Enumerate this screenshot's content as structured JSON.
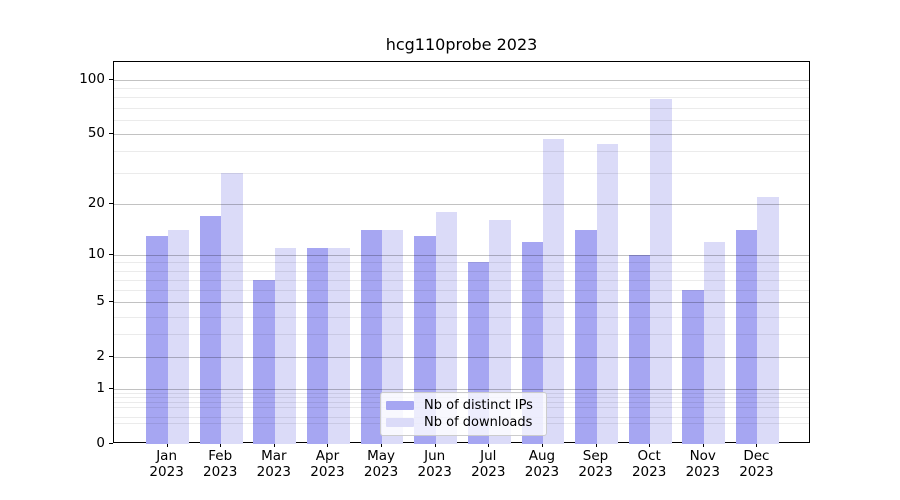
{
  "title": "hcg110probe 2023",
  "colors": {
    "distinct_ips": "#a6a6f2",
    "downloads": "#dbdbf8",
    "major_grid": "#c2c2c2",
    "minor_grid": "#ececec",
    "spine": "#000000"
  },
  "legend": {
    "items": [
      {
        "label": "Nb of distinct IPs",
        "series_key": "distinct_ips"
      },
      {
        "label": "Nb of downloads",
        "series_key": "downloads"
      }
    ],
    "position": "lower center"
  },
  "chart_data": {
    "type": "bar",
    "title": "hcg110probe 2023",
    "categories": [
      "Jan 2023",
      "Feb 2023",
      "Mar 2023",
      "Apr 2023",
      "May 2023",
      "Jun 2023",
      "Jul 2023",
      "Aug 2023",
      "Sep 2023",
      "Oct 2023",
      "Nov 2023",
      "Dec 2023"
    ],
    "series": [
      {
        "name": "Nb of distinct IPs",
        "key": "distinct_ips",
        "color": "#a6a6f2",
        "values": [
          13,
          17,
          7,
          11,
          14,
          13,
          9,
          12,
          14,
          10,
          6,
          14
        ]
      },
      {
        "name": "Nb of downloads",
        "key": "downloads",
        "color": "#dbdbf8",
        "values": [
          14,
          30,
          11,
          11,
          14,
          18,
          16,
          47,
          44,
          78,
          12,
          22
        ]
      }
    ],
    "xlabel": "",
    "ylabel": "",
    "y_scale": "log10(1+v)",
    "y_ticks": [
      0,
      1,
      2,
      5,
      10,
      20,
      50,
      100
    ],
    "y_minor_gridlines": [
      0.3,
      0.4,
      0.6,
      0.7,
      0.8,
      0.9,
      3,
      4,
      6,
      7,
      8,
      9,
      30,
      40,
      60,
      70,
      80,
      90
    ],
    "ylim": [
      0,
      126
    ],
    "grid": true,
    "legend_position": "lower center"
  }
}
